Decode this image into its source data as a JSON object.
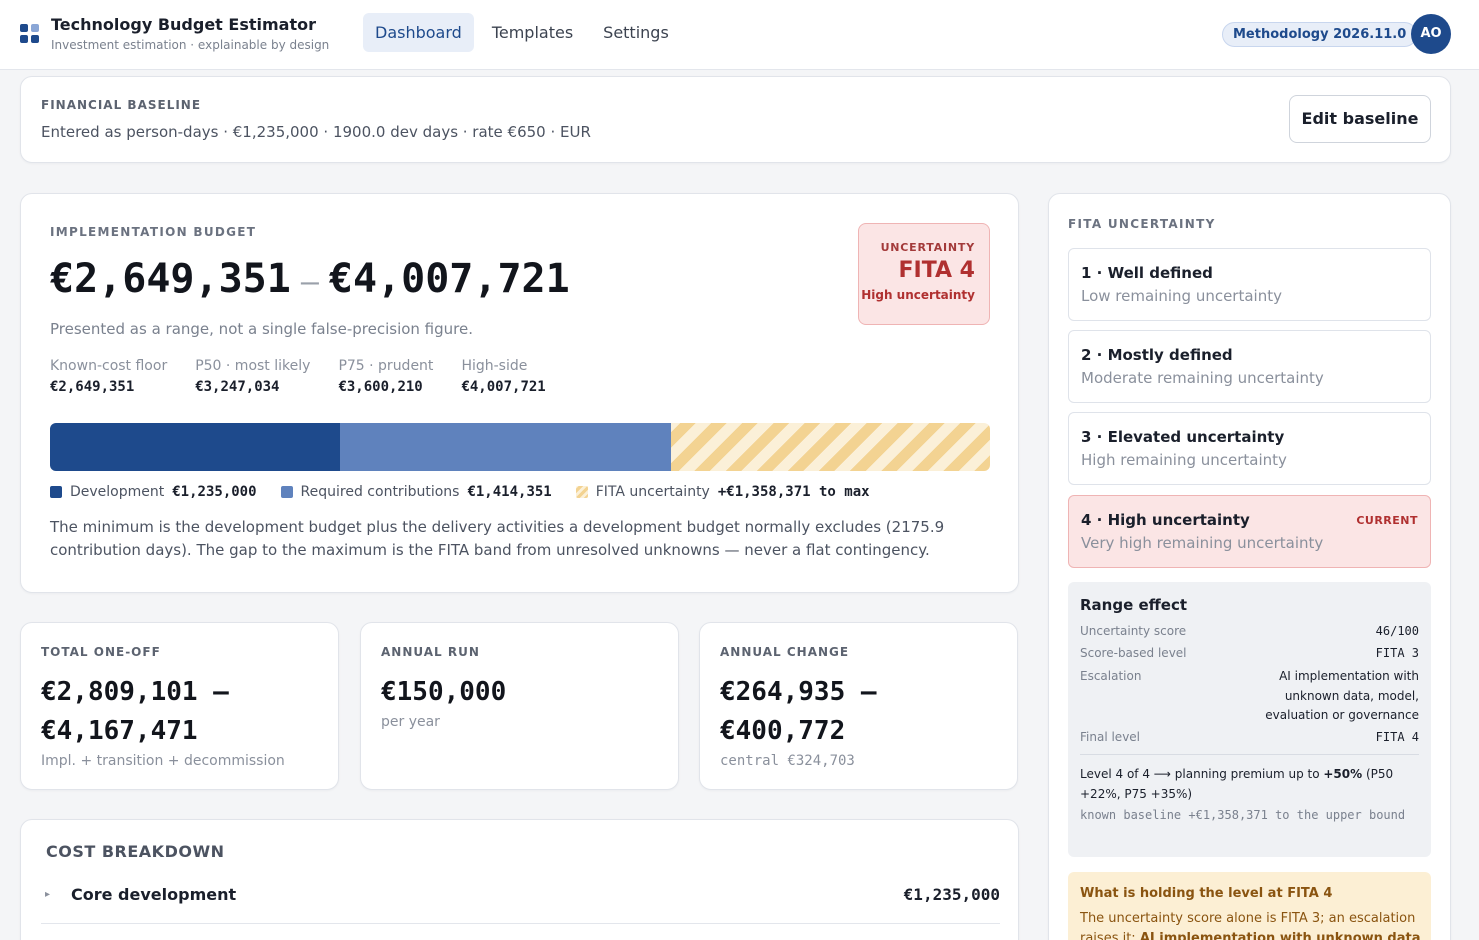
{
  "header": {
    "title": "Technology Budget Estimator",
    "subtitle": "Investment estimation · explainable by design",
    "tabs": [
      {
        "label": "Dashboard"
      },
      {
        "label": "Templates"
      },
      {
        "label": "Settings"
      }
    ],
    "methodology": "Methodology 2026.11.0",
    "avatar_initials": "AO",
    "colors": {
      "brand": "#1e4a8c",
      "logo_light": "#8aa6d6"
    }
  },
  "baseline": {
    "label": "FINANCIAL BASELINE",
    "line": "Entered as person-days · €1,235,000 · 1900.0 dev days · rate €650 · EUR",
    "edit_button": "Edit baseline"
  },
  "impl": {
    "title": "IMPLEMENTATION BUDGET",
    "range_low": "€2,649,351",
    "range_high": "€4,007,721",
    "note": "Presented as a range, not a single false-precision figure.",
    "stats": [
      {
        "label": "Known-cost floor",
        "value": "€2,649,351"
      },
      {
        "label": "P50 · most likely",
        "value": "€3,247,034"
      },
      {
        "label": "P75 · prudent",
        "value": "€3,600,210"
      },
      {
        "label": "High-side",
        "value": "€4,007,721"
      }
    ],
    "uncertainty": {
      "label": "UNCERTAINTY",
      "level": "FITA 4",
      "desc": "High uncertainty"
    },
    "bar_values": {
      "development": 1235000,
      "contributions": 1414351,
      "fita": 1358371
    },
    "bar_colors": {
      "development": "#1e4a8c",
      "contributions": "#5f82bd",
      "fita": "#f3d392"
    },
    "legend": [
      {
        "label": "Development",
        "value": "€1,235,000"
      },
      {
        "label": "Required contributions",
        "value": "€1,414,351"
      },
      {
        "label": "FITA uncertainty",
        "value": "+€1,358,371 to max"
      }
    ],
    "explanation": "The minimum is the development budget plus the delivery activities a development budget normally excludes (2175.9 contribution days). The gap to the maximum is the FITA band from unresolved unknowns — never a flat contingency."
  },
  "mini_cards": [
    {
      "label": "TOTAL ONE-OFF",
      "line1": "€2,809,101 –",
      "line2": "€4,167,471",
      "sub": "Impl. + transition + decommission"
    },
    {
      "label": "ANNUAL RUN",
      "line1": "€150,000",
      "line2": "",
      "sub": "per year"
    },
    {
      "label": "ANNUAL CHANGE",
      "line1": "€264,935 –",
      "line2": "€400,772",
      "sub": "central €324,703"
    }
  ],
  "cost": {
    "title": "COST BREAKDOWN",
    "rows": [
      {
        "label": "Core development",
        "value": "€1,235,000"
      }
    ]
  },
  "fita": {
    "title": "FITA UNCERTAINTY",
    "levels": [
      {
        "title": "1 · Well defined",
        "desc": "Low remaining uncertainty"
      },
      {
        "title": "2 · Mostly defined",
        "desc": "Moderate remaining uncertainty"
      },
      {
        "title": "3 · Elevated uncertainty",
        "desc": "High remaining uncertainty"
      },
      {
        "title": "4 · High uncertainty",
        "desc": "Very high remaining uncertainty",
        "badge": "CURRENT"
      }
    ],
    "effect": {
      "title": "Range effect",
      "rows": [
        {
          "k": "Uncertainty score",
          "v": "46/100"
        },
        {
          "k": "Score-based level",
          "v": "FITA 3"
        },
        {
          "k": "Escalation",
          "v": "AI implementation with unknown data, model, evaluation or governance"
        },
        {
          "k": "Final level",
          "v": "FITA 4"
        }
      ],
      "note_pre": "Level 4 of 4 ⟶ planning premium up to ",
      "note_bold": "+50%",
      "note_post": " (P50 +22%, P75 +35%)",
      "note2": "known baseline +€1,358,371 to the upper bound"
    },
    "holding": {
      "title": "What is holding the level at FITA 4",
      "text_pre": "The uncertainty score alone is FITA 3; an escalation raises it: ",
      "text_bold": "AI implementation with unknown data"
    }
  }
}
